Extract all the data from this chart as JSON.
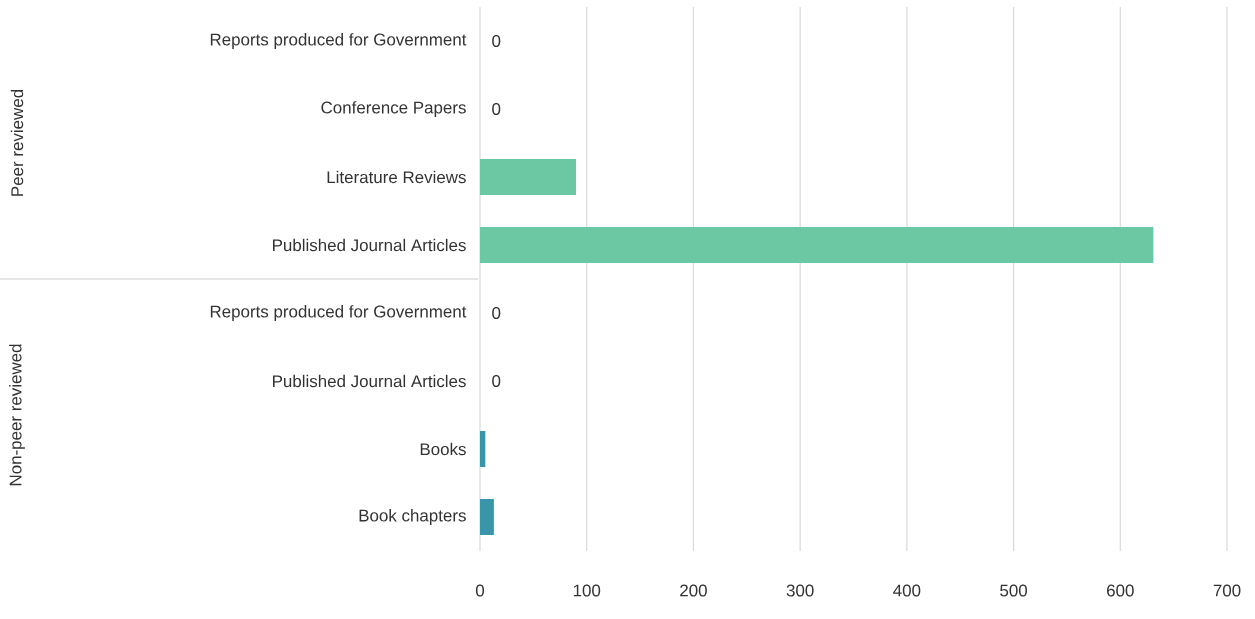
{
  "chart_data": {
    "type": "bar",
    "orientation": "horizontal",
    "categories": [
      "Reports produced for Government",
      "Conference Papers",
      "Literature Reviews",
      "Published Journal Articles",
      "Reports produced for Government",
      "Published Journal Articles",
      "Books",
      "Book chapters"
    ],
    "values": [
      0,
      0,
      90,
      631,
      0,
      0,
      5,
      13
    ],
    "colors": [
      "#6cc7a3",
      "#6cc7a3",
      "#6cc7a3",
      "#6cc7a3",
      "#3896a8",
      "#3896a8",
      "#3896a8",
      "#3896a8"
    ],
    "value_labels": [
      "0",
      "0",
      null,
      null,
      "0",
      "0",
      null,
      null
    ],
    "annotations": [
      "Peer reviewed",
      "Non-peer reviewed"
    ],
    "xlim": [
      0,
      700
    ],
    "xticks": [
      0,
      100,
      200,
      300,
      400,
      500,
      600,
      700
    ],
    "grid": "x"
  }
}
